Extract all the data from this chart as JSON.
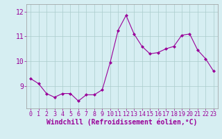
{
  "x": [
    0,
    1,
    2,
    3,
    4,
    5,
    6,
    7,
    8,
    9,
    10,
    11,
    12,
    13,
    14,
    15,
    16,
    17,
    18,
    19,
    20,
    21,
    22,
    23
  ],
  "y": [
    9.3,
    9.1,
    8.7,
    8.55,
    8.7,
    8.7,
    8.4,
    8.65,
    8.65,
    8.85,
    9.95,
    11.25,
    11.85,
    11.1,
    10.6,
    10.3,
    10.35,
    10.5,
    10.6,
    11.05,
    11.1,
    10.45,
    10.1,
    9.6
  ],
  "line_color": "#990099",
  "marker": "D",
  "marker_size": 2,
  "bg_color": "#d6eef2",
  "grid_color": "#aacccc",
  "xlabel": "Windchill (Refroidissement éolien,°C)",
  "xlabel_color": "#990099",
  "tick_color": "#990099",
  "ylabel_ticks": [
    9,
    10,
    11,
    12
  ],
  "ylim": [
    8.1,
    12.3
  ],
  "xlim": [
    -0.5,
    23.5
  ],
  "xticks": [
    0,
    1,
    2,
    3,
    4,
    5,
    6,
    7,
    8,
    9,
    10,
    11,
    12,
    13,
    14,
    15,
    16,
    17,
    18,
    19,
    20,
    21,
    22,
    23
  ],
  "spine_color": "#999999",
  "tick_fontsize": 6,
  "xlabel_fontsize": 7,
  "ylabel_fontsize": 7,
  "linewidth": 0.8
}
